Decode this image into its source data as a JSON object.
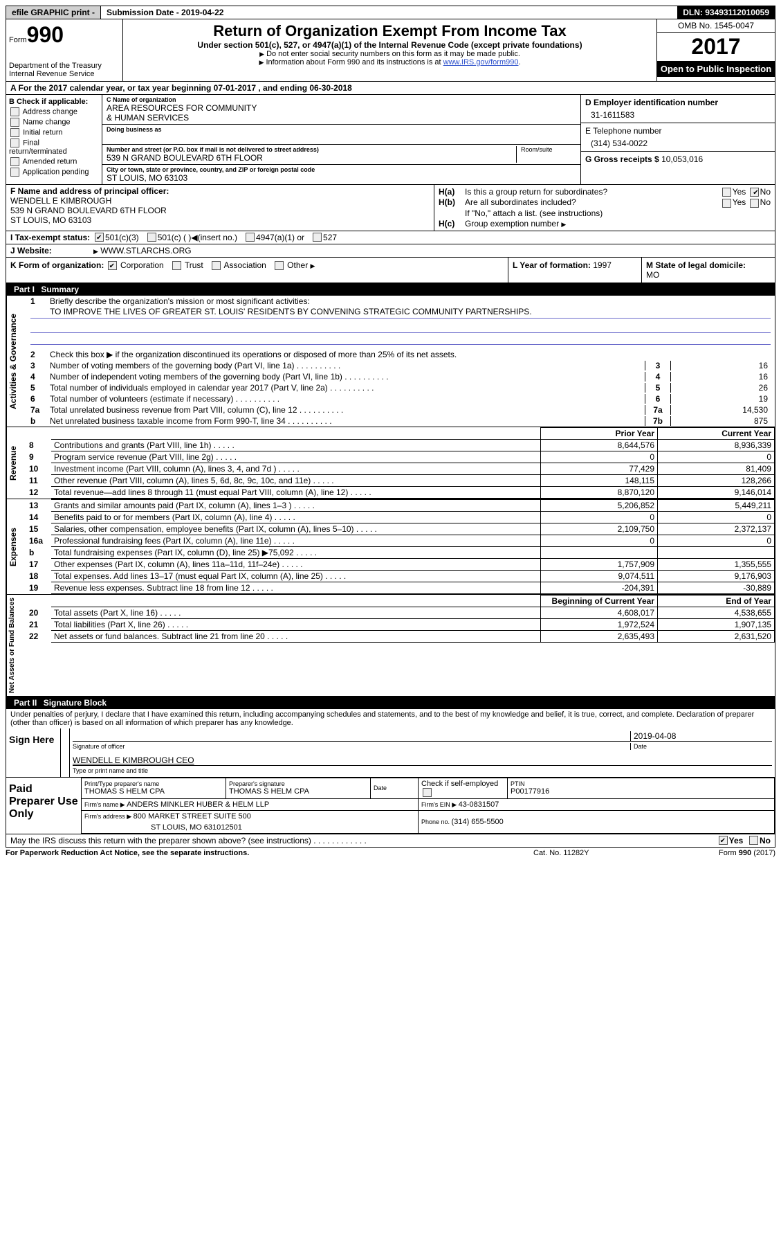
{
  "topbar": {
    "efile": "efile GRAPHIC print - ",
    "submission_label": "Submission Date - ",
    "submission_date": "2019-04-22",
    "dln": "DLN: 93493112010059"
  },
  "header": {
    "form_word": "Form",
    "form_num": "990",
    "dept": "Department of the Treasury",
    "irs": "Internal Revenue Service",
    "title": "Return of Organization Exempt From Income Tax",
    "subtitle": "Under section 501(c), 527, or 4947(a)(1) of the Internal Revenue Code (except private foundations)",
    "note1": "Do not enter social security numbers on this form as it may be made public.",
    "note2_pre": "Information about Form 990 and its instructions is at ",
    "note2_link": "www.IRS.gov/form990",
    "omb": "OMB No. 1545-0047",
    "year": "2017",
    "open": "Open to Public Inspection"
  },
  "sectionA": {
    "text": "A  For the 2017 calendar year, or tax year beginning 07-01-2017   , and ending 06-30-2018"
  },
  "sectionB": {
    "title": "B Check if applicable:",
    "items": [
      "Address change",
      "Name change",
      "Initial return",
      "Final return/terminated",
      "Amended return",
      "Application pending"
    ]
  },
  "sectionC": {
    "name_label": "C Name of organization",
    "name1": "AREA RESOURCES FOR COMMUNITY",
    "name2": "& HUMAN SERVICES",
    "dba_label": "Doing business as",
    "street_label": "Number and street (or P.O. box if mail is not delivered to street address)",
    "street": "539 N GRAND BOULEVARD 6TH FLOOR",
    "room_label": "Room/suite",
    "city_label": "City or town, state or province, country, and ZIP or foreign postal code",
    "city": "ST LOUIS, MO  63103"
  },
  "sectionD": {
    "label": "D Employer identification number",
    "ein": "31-1611583"
  },
  "sectionE": {
    "label": "E Telephone number",
    "phone": "(314) 534-0022"
  },
  "sectionG": {
    "label": "G Gross receipts $ ",
    "amount": "10,053,016"
  },
  "sectionF": {
    "label": "F  Name and address of principal officer:",
    "name": "WENDELL E KIMBROUGH",
    "addr1": "539 N GRAND BOULEVARD 6TH FLOOR",
    "addr2": "ST LOUIS, MO  63103"
  },
  "sectionH": {
    "a": "Is this a group return for subordinates?",
    "b": "Are all subordinates included?",
    "note": "If \"No,\" attach a list. (see instructions)",
    "c": "Group exemption number",
    "yes": "Yes",
    "no": "No"
  },
  "sectionI": {
    "label": "I  Tax-exempt status:",
    "opt1": "501(c)(3)",
    "opt2": "501(c) (  )",
    "opt2_insert": "(insert no.)",
    "opt3": "4947(a)(1) or",
    "opt4": "527"
  },
  "sectionJ": {
    "label": "J  Website:",
    "url": "WWW.STLARCHS.ORG"
  },
  "sectionK": {
    "label": "K Form of organization:",
    "corp": "Corporation",
    "trust": "Trust",
    "assoc": "Association",
    "other": "Other"
  },
  "sectionL": {
    "label": "L Year of formation: ",
    "year": "1997"
  },
  "sectionM": {
    "label": "M State of legal domicile:",
    "state": "MO"
  },
  "part1": {
    "title": "Part I",
    "name": "Summary",
    "gov_tab": "Activities & Governance",
    "rev_tab": "Revenue",
    "exp_tab": "Expenses",
    "net_tab": "Net Assets or Fund Balances",
    "line1": "Briefly describe the organization's mission or most significant activities:",
    "mission": "TO IMPROVE THE LIVES OF GREATER ST. LOUIS' RESIDENTS BY CONVENING STRATEGIC COMMUNITY PARTNERSHIPS.",
    "line2": "Check this box ▶     if the organization discontinued its operations or disposed of more than 25% of its net assets.",
    "rows_gov": [
      {
        "n": "3",
        "t": "Number of voting members of the governing body (Part VI, line 1a)",
        "b": "3",
        "v": "16"
      },
      {
        "n": "4",
        "t": "Number of independent voting members of the governing body (Part VI, line 1b)",
        "b": "4",
        "v": "16"
      },
      {
        "n": "5",
        "t": "Total number of individuals employed in calendar year 2017 (Part V, line 2a)",
        "b": "5",
        "v": "26"
      },
      {
        "n": "6",
        "t": "Total number of volunteers (estimate if necessary)",
        "b": "6",
        "v": "19"
      },
      {
        "n": "7a",
        "t": "Total unrelated business revenue from Part VIII, column (C), line 12",
        "b": "7a",
        "v": "14,530"
      },
      {
        "n": "b",
        "t": "Net unrelated business taxable income from Form 990-T, line 34",
        "b": "7b",
        "v": "875"
      }
    ],
    "py": "Prior Year",
    "cy": "Current Year",
    "boy": "Beginning of Current Year",
    "eoy": "End of Year",
    "rows_rev": [
      {
        "n": "8",
        "t": "Contributions and grants (Part VIII, line 1h)",
        "py": "8,644,576",
        "cy": "8,936,339"
      },
      {
        "n": "9",
        "t": "Program service revenue (Part VIII, line 2g)",
        "py": "0",
        "cy": "0"
      },
      {
        "n": "10",
        "t": "Investment income (Part VIII, column (A), lines 3, 4, and 7d )",
        "py": "77,429",
        "cy": "81,409"
      },
      {
        "n": "11",
        "t": "Other revenue (Part VIII, column (A), lines 5, 6d, 8c, 9c, 10c, and 11e)",
        "py": "148,115",
        "cy": "128,266"
      },
      {
        "n": "12",
        "t": "Total revenue—add lines 8 through 11 (must equal Part VIII, column (A), line 12)",
        "py": "8,870,120",
        "cy": "9,146,014"
      }
    ],
    "rows_exp": [
      {
        "n": "13",
        "t": "Grants and similar amounts paid (Part IX, column (A), lines 1–3 )",
        "py": "5,206,852",
        "cy": "5,449,211"
      },
      {
        "n": "14",
        "t": "Benefits paid to or for members (Part IX, column (A), line 4)",
        "py": "0",
        "cy": "0"
      },
      {
        "n": "15",
        "t": "Salaries, other compensation, employee benefits (Part IX, column (A), lines 5–10)",
        "py": "2,109,750",
        "cy": "2,372,137"
      },
      {
        "n": "16a",
        "t": "Professional fundraising fees (Part IX, column (A), line 11e)",
        "py": "0",
        "cy": "0"
      },
      {
        "n": "b",
        "t": "Total fundraising expenses (Part IX, column (D), line 25) ▶75,092",
        "py": "",
        "cy": "",
        "gray": true
      },
      {
        "n": "17",
        "t": "Other expenses (Part IX, column (A), lines 11a–11d, 11f–24e)",
        "py": "1,757,909",
        "cy": "1,355,555"
      },
      {
        "n": "18",
        "t": "Total expenses. Add lines 13–17 (must equal Part IX, column (A), line 25)",
        "py": "9,074,511",
        "cy": "9,176,903"
      },
      {
        "n": "19",
        "t": "Revenue less expenses. Subtract line 18 from line 12",
        "py": "-204,391",
        "cy": "-30,889"
      }
    ],
    "rows_net": [
      {
        "n": "20",
        "t": "Total assets (Part X, line 16)",
        "py": "4,608,017",
        "cy": "4,538,655"
      },
      {
        "n": "21",
        "t": "Total liabilities (Part X, line 26)",
        "py": "1,972,524",
        "cy": "1,907,135"
      },
      {
        "n": "22",
        "t": "Net assets or fund balances. Subtract line 21 from line 20",
        "py": "2,635,493",
        "cy": "2,631,520"
      }
    ]
  },
  "part2": {
    "title": "Part II",
    "name": "Signature Block",
    "perjury": "Under penalties of perjury, I declare that I have examined this return, including accompanying schedules and statements, and to the best of my knowledge and belief, it is true, correct, and complete. Declaration of preparer (other than officer) is based on all information of which preparer has any knowledge.",
    "sign_here": "Sign Here",
    "sig_officer": "Signature of officer",
    "date": "Date",
    "sig_date": "2019-04-08",
    "name_title": "WENDELL E KIMBROUGH CEO",
    "type_name": "Type or print name and title",
    "paid": "Paid Preparer Use Only",
    "prep_name_label": "Print/Type preparer's name",
    "prep_name": "THOMAS S HELM CPA",
    "prep_sig_label": "Preparer's signature",
    "prep_sig": "THOMAS S HELM CPA",
    "check_label": "Check       if self-employed",
    "ptin_label": "PTIN",
    "ptin": "P00177916",
    "firm_name_label": "Firm's name    ▶ ",
    "firm_name": "ANDERS MINKLER HUBER & HELM LLP",
    "firm_ein_label": "Firm's EIN ▶ ",
    "firm_ein": "43-0831507",
    "firm_addr_label": "Firm's address ▶ ",
    "firm_addr1": "800 MARKET STREET SUITE 500",
    "firm_addr2": "ST LOUIS, MO  631012501",
    "phone_label": "Phone no. ",
    "phone": "(314) 655-5500",
    "may_irs": "May the IRS discuss this return with the preparer shown above? (see instructions)"
  },
  "footer": {
    "left": "For Paperwork Reduction Act Notice, see the separate instructions.",
    "cat": "Cat. No. 11282Y",
    "form": "Form 990 (2017)"
  }
}
